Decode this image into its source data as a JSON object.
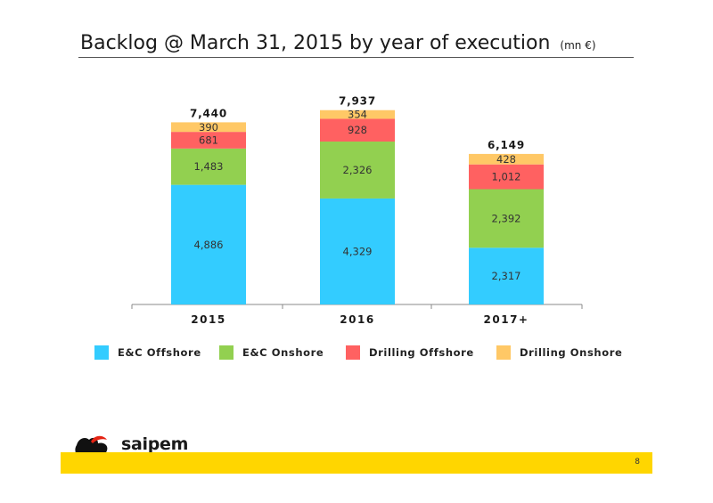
{
  "page": {
    "title": "Backlog @ March 31, 2015 by year of execution",
    "unit": "(mn €)",
    "page_number": "8",
    "logo_text": "saipem"
  },
  "colors": {
    "E&C Offshore": "#33ccff",
    "E&C Onshore": "#92d050",
    "Drilling Offshore": "#ff6161",
    "Drilling Onshore": "#ffc866",
    "footer": "#ffd600"
  },
  "chart_data": {
    "type": "bar",
    "stacked": true,
    "categories": [
      "2015",
      "2016",
      "2017+"
    ],
    "series": [
      {
        "name": "E&C Offshore",
        "values": [
          4886,
          4329,
          2317
        ],
        "labels": [
          "4,886",
          "4,329",
          "2,317"
        ]
      },
      {
        "name": "E&C Onshore",
        "values": [
          1483,
          2326,
          2392
        ],
        "labels": [
          "1,483",
          "2,326",
          "2,392"
        ]
      },
      {
        "name": "Drilling Offshore",
        "values": [
          681,
          928,
          1012
        ],
        "labels": [
          "681",
          "928",
          "1,012"
        ]
      },
      {
        "name": "Drilling Onshore",
        "values": [
          390,
          354,
          428
        ],
        "labels": [
          "390",
          "354",
          "428"
        ]
      }
    ],
    "totals": [
      "7,440",
      "7,937",
      "6,149"
    ],
    "ylim": [
      0,
      8000
    ],
    "grid": false,
    "legend_position": "bottom",
    "title": "",
    "xlabel": "",
    "ylabel": ""
  }
}
